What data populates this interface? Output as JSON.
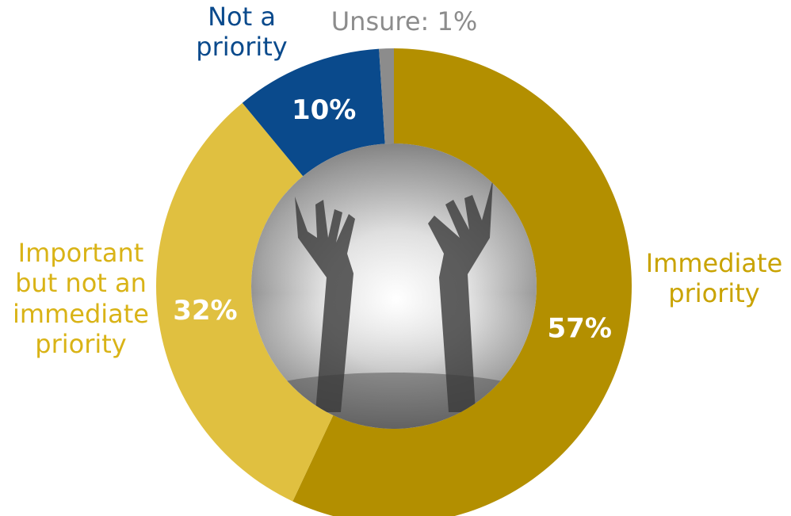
{
  "chart_data": {
    "type": "pie",
    "variant": "donut",
    "slices": [
      {
        "name": "Immediate priority",
        "label_text": "Immediate\npriority",
        "value": 57,
        "value_label": "57%",
        "color": "#b38f00",
        "label_color": "#c9a300"
      },
      {
        "name": "Important but not an immediate priority",
        "label_text": "Important\nbut not an\nimmediate\npriority",
        "value": 32,
        "value_label": "32%",
        "color": "#e0c040",
        "label_color": "#d9b316"
      },
      {
        "name": "Not a priority",
        "label_text": "Not a\npriority",
        "value": 10,
        "value_label": "10%",
        "color": "#0a4a8c",
        "label_color": "#0a4a8c"
      },
      {
        "name": "Unsure",
        "label_text": "Unsure: 1%",
        "value": 1,
        "value_label": "",
        "color": "#8c8c8c",
        "label_color": "#8c8c8c"
      }
    ],
    "center_image": "raised-hands-photo",
    "legend": "none"
  }
}
